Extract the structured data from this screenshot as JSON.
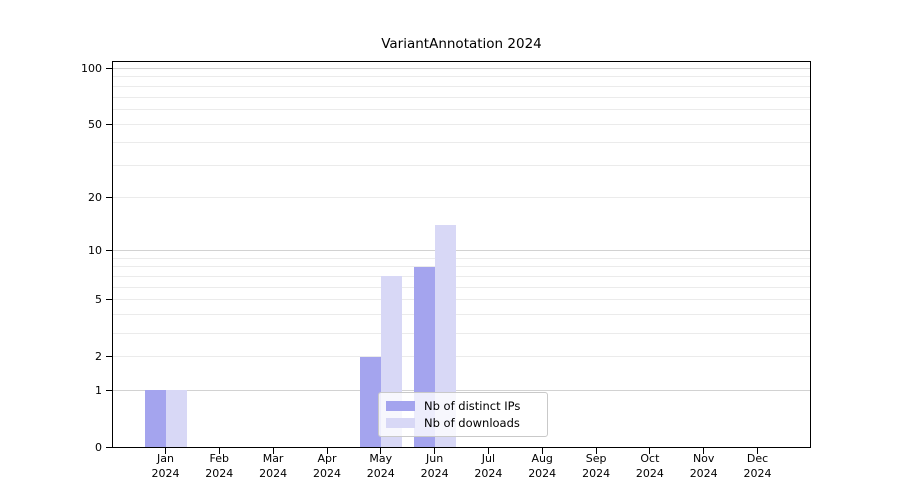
{
  "chart_data": {
    "type": "bar",
    "title": "VariantAnnotation 2024",
    "categories": [
      "Jan",
      "Feb",
      "Mar",
      "Apr",
      "May",
      "Jun",
      "Jul",
      "Aug",
      "Sep",
      "Oct",
      "Nov",
      "Dec"
    ],
    "year_label": "2024",
    "series": [
      {
        "name": "Nb of distinct IPs",
        "color": "#a4a4ee",
        "values": [
          1,
          0,
          0,
          0,
          2,
          8,
          0,
          0,
          0,
          0,
          0,
          0
        ]
      },
      {
        "name": "Nb of downloads",
        "color": "#d8d8f6",
        "values": [
          1,
          0,
          0,
          0,
          7,
          14,
          0,
          0,
          0,
          0,
          0,
          0
        ]
      }
    ],
    "yticks": [
      0,
      1,
      2,
      5,
      10,
      20,
      50,
      100
    ],
    "major_gridlines": [
      1,
      10,
      100
    ],
    "minor_gridlines": [
      2,
      3,
      4,
      5,
      6,
      7,
      8,
      9,
      20,
      30,
      40,
      50,
      60,
      70,
      80,
      90
    ],
    "scale": "log10(1+v)",
    "ylim": [
      0,
      108
    ],
    "xlabel": "",
    "ylabel": "",
    "grid": "horizontal",
    "legend_position": "inside-bottom-center-right"
  },
  "colors": {
    "axis": "#000000",
    "major_grid": "#d2d2d2",
    "minor_grid": "#ebebeb",
    "legend_border": "#c9c9c9",
    "text": "#1a1a1a"
  }
}
